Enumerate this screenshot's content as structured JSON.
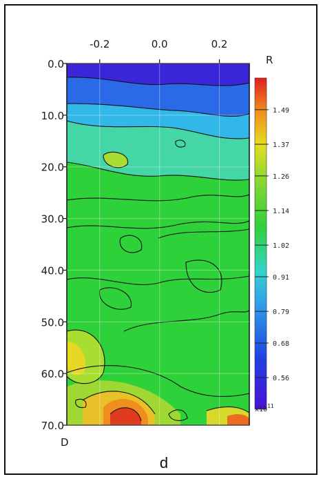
{
  "chart_data": {
    "type": "heatmap",
    "panel_label": "d",
    "x_axis_letter": "R",
    "y_axis_letter": "D",
    "x_ticks": [
      "-0.2",
      "0.0",
      "0.2"
    ],
    "x_tick_values": [
      -0.2,
      0.0,
      0.2
    ],
    "xlim": [
      -0.31,
      0.3
    ],
    "y_ticks": [
      "0.0",
      "10.0",
      "20.0",
      "30.0",
      "40.0",
      "50.0",
      "60.0",
      "70.0"
    ],
    "y_tick_values": [
      0,
      10,
      20,
      30,
      40,
      50,
      60,
      70
    ],
    "ylim": [
      0,
      70
    ],
    "y_inverted": true,
    "colorbar": {
      "ticks": [
        "1.49",
        "1.37",
        "1.26",
        "1.14",
        "1.02",
        "0.91",
        "0.79",
        "0.68",
        "0.56"
      ],
      "tick_values": [
        1.49,
        1.37,
        1.26,
        1.14,
        1.02,
        0.91,
        0.79,
        0.68,
        0.56
      ],
      "range": [
        0.45,
        1.6
      ],
      "multiplier": "x10",
      "exponent": "11"
    },
    "contours": true,
    "colors": {
      "low": "#3a1ccd",
      "mid": "#2fd13a",
      "high": "#e11f1f"
    }
  }
}
